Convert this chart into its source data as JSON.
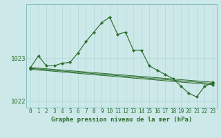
{
  "title": "Graphe pression niveau de la mer (hPa)",
  "bg_color": "#cce8e8",
  "grid_color": "#b0d8d8",
  "line_color": "#2d6e2d",
  "marker_color": "#2d6e2d",
  "hours": [
    0,
    1,
    2,
    3,
    4,
    5,
    6,
    7,
    8,
    9,
    10,
    11,
    12,
    13,
    14,
    15,
    16,
    17,
    18,
    19,
    20,
    21,
    22,
    23
  ],
  "main_y": [
    1022.78,
    1023.05,
    1022.82,
    1022.82,
    1022.88,
    1022.9,
    1023.12,
    1023.38,
    1023.6,
    1023.82,
    1023.95,
    1023.55,
    1023.6,
    1023.18,
    1023.18,
    1022.82,
    1022.72,
    1022.62,
    1022.52,
    1022.35,
    1022.18,
    1022.1,
    1022.35,
    1022.42
  ],
  "line_a": [
    [
      0,
      23
    ],
    [
      1022.78,
      1022.44
    ]
  ],
  "line_b": [
    [
      0,
      23
    ],
    [
      1022.76,
      1022.41
    ]
  ],
  "line_c": [
    [
      0,
      23
    ],
    [
      1022.74,
      1022.38
    ]
  ],
  "ylim": [
    1021.85,
    1024.25
  ],
  "yticks": [
    1022.0,
    1023.0
  ],
  "xlim": [
    -0.5,
    23.5
  ],
  "title_fontsize": 6.5,
  "tick_fontsize": 5.5
}
